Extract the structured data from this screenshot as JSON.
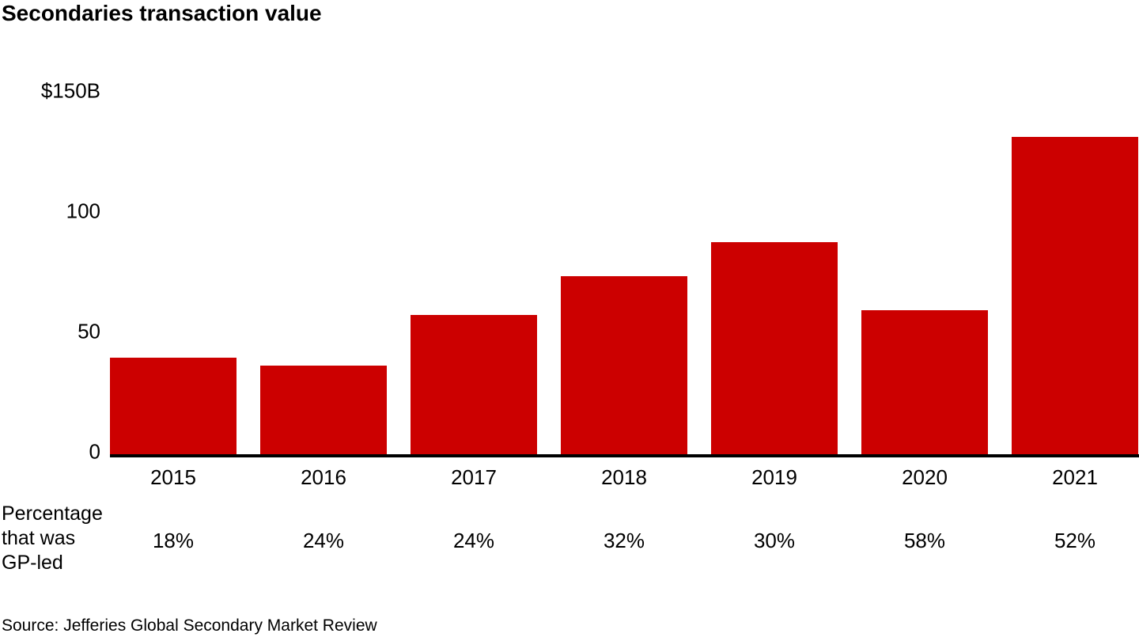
{
  "title": "Secondaries transaction value",
  "source": "Source: Jefferies Global Secondary Market Review",
  "row_label": {
    "line1": "Percentage",
    "line2": "that was",
    "line3": "GP-led"
  },
  "colors": {
    "bar": "#cc0000",
    "axis": "#000000",
    "text": "#000000",
    "background": "#ffffff"
  },
  "chart_data": {
    "type": "bar",
    "title": "Secondaries transaction value",
    "unit": "$B",
    "categories": [
      "2015",
      "2016",
      "2017",
      "2018",
      "2019",
      "2020",
      "2021"
    ],
    "values": [
      40,
      37,
      58,
      74,
      88,
      60,
      132
    ],
    "gp_led_percentages": [
      "18%",
      "24%",
      "24%",
      "32%",
      "30%",
      "58%",
      "52%"
    ],
    "y_ticks": [
      {
        "label": "$150B",
        "value": 150
      },
      {
        "label": "100",
        "value": 100
      },
      {
        "label": "50",
        "value": 50
      },
      {
        "label": "0",
        "value": 0
      }
    ],
    "ylim": [
      0,
      150
    ],
    "grid": false,
    "legend": "none"
  }
}
